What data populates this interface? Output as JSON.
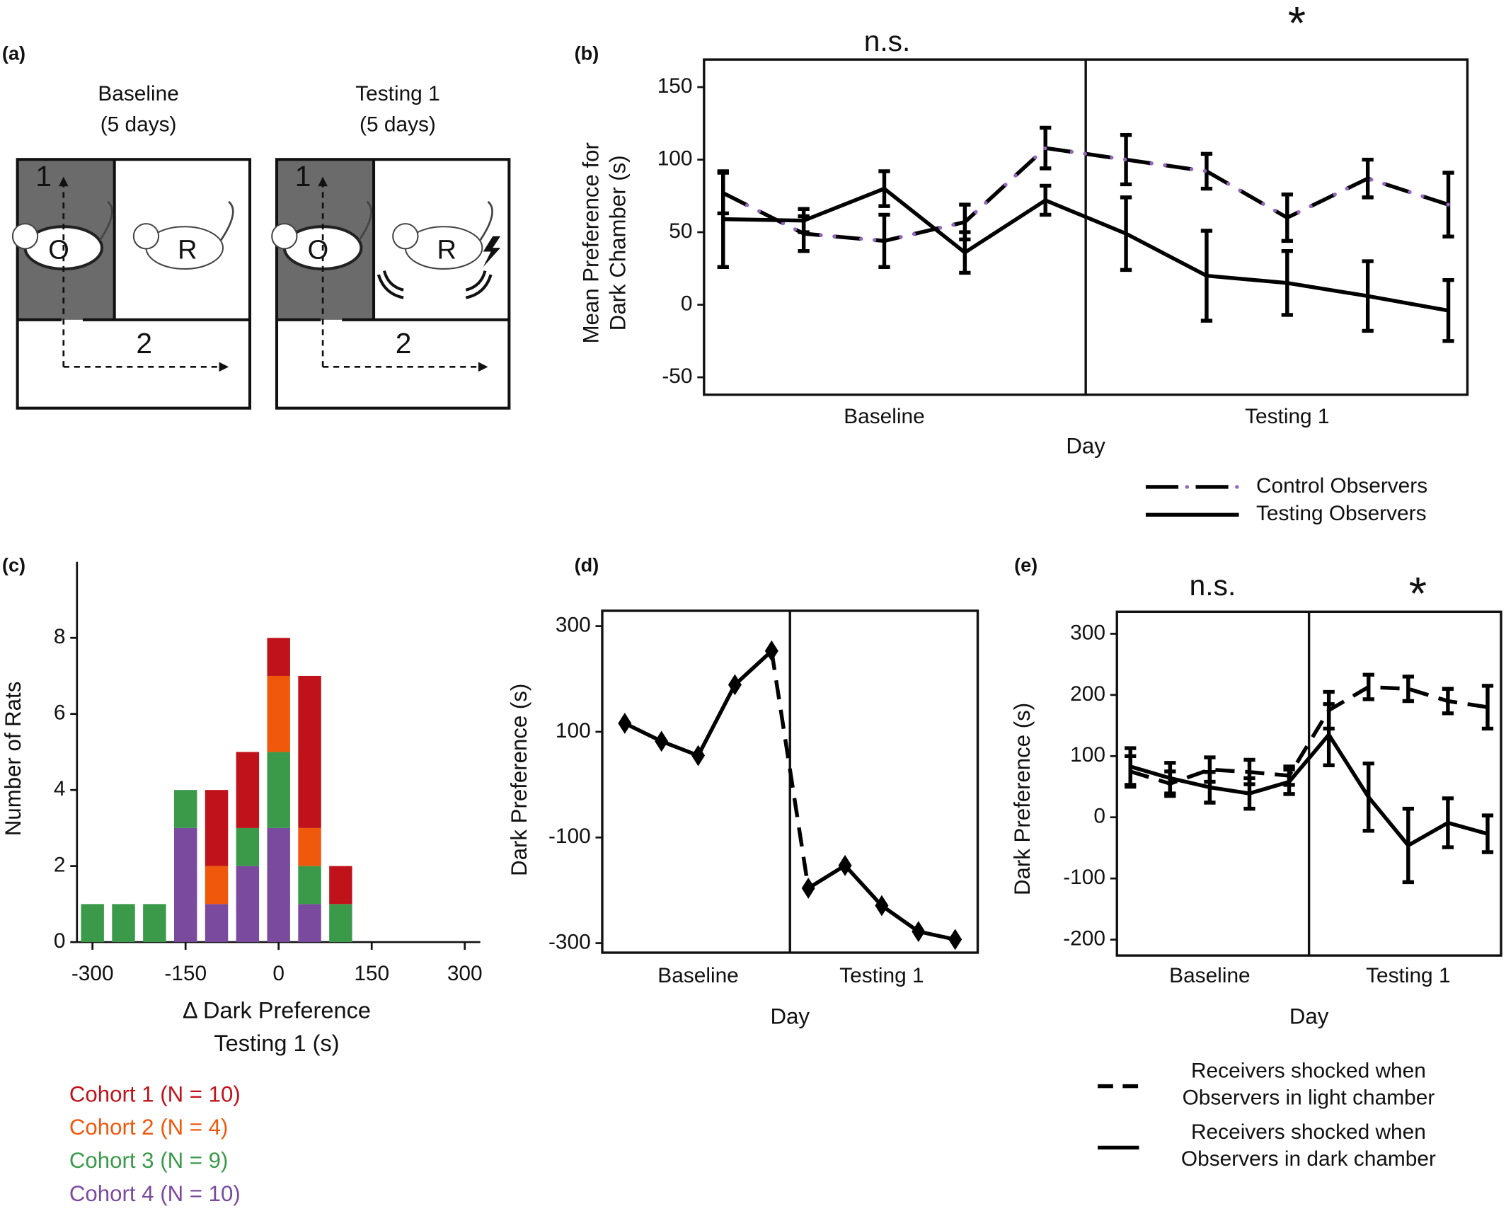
{
  "diagram": {
    "label": "(a)",
    "panels": [
      {
        "title": "Baseline",
        "subtitle": "(5 days)",
        "chamber_1": "1",
        "chamber_2": "2",
        "observer": "O",
        "receiver": "R"
      },
      {
        "title": "Testing 1",
        "subtitle": "(5 days)",
        "chamber_1": "1",
        "chamber_2": "2",
        "observer": "O",
        "receiver": "R"
      }
    ]
  },
  "chart_data": [
    {
      "type": "line",
      "label": "(b)",
      "ylabel": [
        "Mean Preference for",
        "Dark Chamber (s)"
      ],
      "xlabel": "Day",
      "categories": [
        null,
        null,
        null,
        null,
        null,
        null,
        null,
        null,
        null,
        null
      ],
      "groups": [
        "Baseline",
        "Testing 1"
      ],
      "annotations": [
        "n.s.",
        "*"
      ],
      "ylim": [
        -62,
        169
      ],
      "yticks": [
        -50,
        0,
        50,
        100,
        150
      ],
      "series": [
        {
          "name": "Control Observers",
          "color": "#000000",
          "dot_color": "#9467bd",
          "style": "dashdot",
          "values": [
            77,
            49,
            44,
            57,
            108,
            100,
            92,
            60,
            87,
            69
          ],
          "errors": [
            14,
            12,
            18,
            12,
            14,
            17,
            12,
            16,
            13,
            22
          ]
        },
        {
          "name": "Testing Observers",
          "color": "#000000",
          "style": "solid",
          "values": [
            59,
            58,
            80,
            36,
            72,
            49,
            20,
            15,
            6,
            -4
          ],
          "errors": [
            33,
            8,
            12,
            14,
            10,
            25,
            31,
            22,
            24,
            21
          ]
        }
      ]
    },
    {
      "type": "histogram",
      "label": "(c)",
      "ylabel": "Number of Rats",
      "xlabel": [
        "Δ Dark Preference",
        "Testing 1 (s)"
      ],
      "bins": [
        -325,
        -275,
        -225,
        -175,
        -125,
        -75,
        -25,
        25,
        75,
        125
      ],
      "xlim": [
        -325,
        325
      ],
      "xticks": [
        -300,
        -150,
        0,
        150,
        300
      ],
      "ylim": [
        0,
        10
      ],
      "yticks": [
        0,
        2,
        4,
        6,
        8
      ],
      "series": [
        {
          "name": "Cohort 1 (N = 10)",
          "color": "#c0121a",
          "values": [
            0,
            0,
            0,
            0,
            2,
            2,
            1,
            4,
            1
          ]
        },
        {
          "name": "Cohort 2 (N = 4)",
          "color": "#f0580c",
          "values": [
            0,
            0,
            0,
            0,
            1,
            0,
            2,
            1,
            0
          ]
        },
        {
          "name": "Cohort 3 (N = 9)",
          "color": "#3a9a4a",
          "values": [
            1,
            1,
            1,
            1,
            0,
            1,
            2,
            1,
            1
          ]
        },
        {
          "name": "Cohort 4 (N = 10)",
          "color": "#7a4a9e",
          "values": [
            0,
            0,
            0,
            3,
            1,
            2,
            3,
            1,
            0
          ]
        }
      ]
    },
    {
      "type": "line",
      "label": "(d)",
      "ylabel": "Dark Preference (s)",
      "xlabel": "Day",
      "categories": [
        null,
        null,
        null,
        null,
        null,
        null,
        null,
        null,
        null,
        null
      ],
      "groups": [
        "Baseline",
        "Testing 1"
      ],
      "ylim": [
        -318,
        329
      ],
      "yticks": [
        -300,
        -100,
        100,
        300
      ],
      "series": [
        {
          "color": "#000000",
          "style": "solid",
          "bridge": "dashed",
          "marker": "diamond",
          "values": [
            116,
            82,
            55,
            189,
            253,
            -196,
            -153,
            -229,
            -278,
            -293
          ]
        }
      ]
    },
    {
      "type": "line",
      "label": "(e)",
      "ylabel": "Dark Preference (s)",
      "xlabel": "Day",
      "categories": [
        null,
        null,
        null,
        null,
        null,
        null,
        null,
        null,
        null,
        null
      ],
      "groups": [
        "Baseline",
        "Testing 1"
      ],
      "annotations": [
        "n.s.",
        "*"
      ],
      "ylim": [
        -226,
        336
      ],
      "yticks": [
        -200,
        -100,
        0,
        100,
        200,
        300
      ],
      "series": [
        {
          "name": "Receivers shocked when Observers in light chamber",
          "color": "#000000",
          "style": "dashed",
          "values": [
            75,
            55,
            78,
            74,
            68,
            175,
            213,
            210,
            190,
            180
          ],
          "errors": [
            25,
            20,
            20,
            20,
            15,
            30,
            20,
            20,
            20,
            35
          ]
        },
        {
          "name": "Receivers shocked when Observers in dark chamber",
          "color": "#000000",
          "style": "solid",
          "values": [
            83,
            64,
            49,
            39,
            58,
            135,
            33,
            -46,
            -9,
            -27
          ],
          "errors": [
            30,
            25,
            25,
            25,
            20,
            50,
            55,
            60,
            40,
            30
          ]
        }
      ]
    }
  ]
}
